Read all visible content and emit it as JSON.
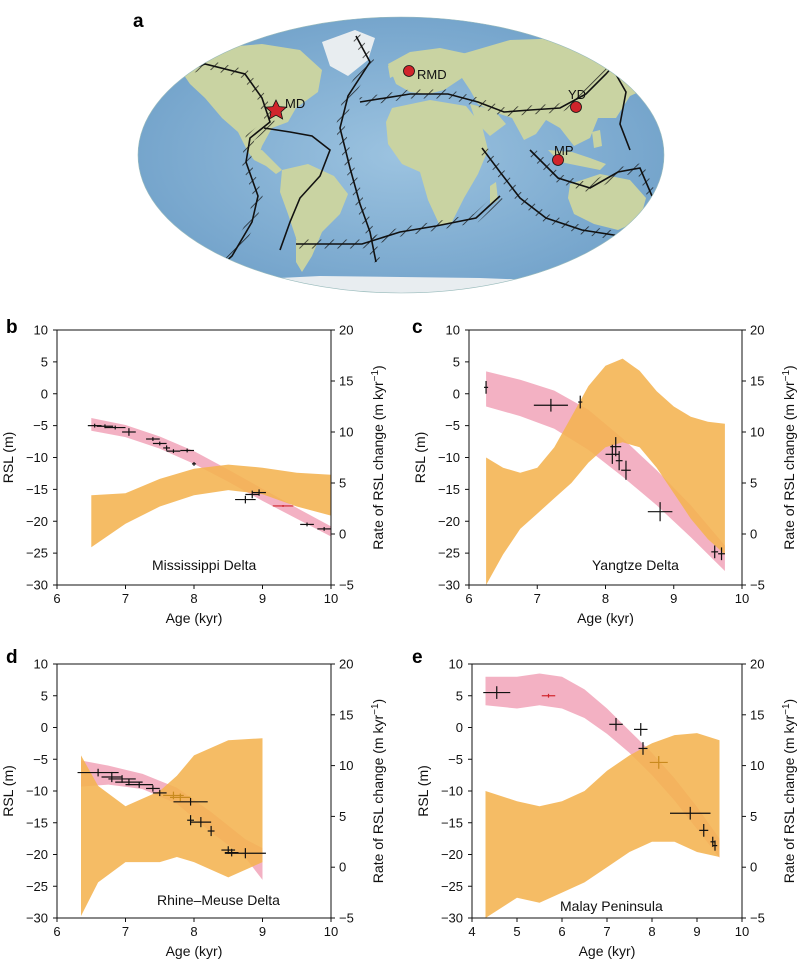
{
  "panel_letters": [
    "a",
    "b",
    "c",
    "d",
    "e"
  ],
  "map": {
    "sites": [
      {
        "label": "MD",
        "marker": "star",
        "name": "Mississippi Delta"
      },
      {
        "label": "RMD",
        "marker": "circle",
        "name": "Rhine-Meuse Delta"
      },
      {
        "label": "YD",
        "marker": "circle",
        "name": "Yangtze Delta"
      },
      {
        "label": "MP",
        "marker": "circle",
        "name": "Malay Peninsula"
      }
    ],
    "colors": {
      "ocean": "#8fb8d9",
      "land": "#c9d3a2",
      "boundary": "#111111",
      "site": "#d0242b"
    }
  },
  "axis_text": {
    "xlabel": "Age (kyr)",
    "ylabel": "RSL (m)",
    "y2label": "Rate of RSL change (m kyr",
    "y2label_sup": "−1",
    "y2label_end": ")"
  },
  "colors": {
    "rsl_band": "#f2a9bd",
    "rate_band": "#f4b350",
    "points": "#111111",
    "highlight": "#d0242b",
    "highlight_orange": "#c98a1e"
  },
  "chart_data": [
    {
      "panel": "b",
      "type": "area",
      "title": "Mississippi Delta",
      "xlabel": "Age (kyr)",
      "ylabel": "RSL (m)",
      "y2label": "Rate of RSL change (m kyr−1)",
      "xlim": [
        6,
        10
      ],
      "ylim": [
        -30,
        10
      ],
      "y2lim": [
        -5,
        20
      ],
      "xticks": [
        6,
        7,
        8,
        9,
        10
      ],
      "yticks": [
        10,
        5,
        0,
        -5,
        -10,
        -15,
        -20,
        -25,
        -30
      ],
      "y2ticks": [
        20,
        15,
        10,
        5,
        0,
        -5
      ],
      "rsl_band": {
        "x": [
          6.5,
          7.0,
          7.5,
          8.0,
          8.5,
          9.0,
          9.5,
          10.0
        ],
        "lower": [
          -5.8,
          -6.8,
          -8.6,
          -11.0,
          -13.8,
          -16.8,
          -19.6,
          -22.4
        ],
        "upper": [
          -3.8,
          -4.9,
          -6.7,
          -9.0,
          -11.9,
          -14.9,
          -17.9,
          -20.8
        ]
      },
      "rate_band": {
        "x": [
          6.5,
          7.0,
          7.5,
          8.0,
          8.5,
          9.0,
          9.5,
          10.0
        ],
        "lower": [
          -1.3,
          1.0,
          2.7,
          3.8,
          4.3,
          3.9,
          2.7,
          1.8
        ],
        "upper": [
          3.8,
          4.0,
          5.4,
          6.4,
          6.8,
          6.5,
          6.0,
          5.8
        ]
      },
      "points": [
        {
          "x": 6.55,
          "y": -5.0,
          "xerr": 0.1,
          "yerr": 0.3
        },
        {
          "x": 6.7,
          "y": -5.1,
          "xerr": 0.12,
          "yerr": 0.3
        },
        {
          "x": 6.85,
          "y": -5.3,
          "xerr": 0.15,
          "yerr": 0.3
        },
        {
          "x": 7.05,
          "y": -6.0,
          "xerr": 0.1,
          "yerr": 0.6
        },
        {
          "x": 7.4,
          "y": -7.1,
          "xerr": 0.1,
          "yerr": 0.3
        },
        {
          "x": 7.5,
          "y": -7.8,
          "xerr": 0.1,
          "yerr": 0.3
        },
        {
          "x": 7.6,
          "y": -8.5,
          "xerr": 0.05,
          "yerr": 0.4
        },
        {
          "x": 7.7,
          "y": -9.0,
          "xerr": 0.1,
          "yerr": 0.3
        },
        {
          "x": 7.9,
          "y": -8.9,
          "xerr": 0.1,
          "yerr": 0.3
        },
        {
          "x": 8.0,
          "y": -11.0,
          "xerr": 0.03,
          "yerr": 0.3
        },
        {
          "x": 8.75,
          "y": -16.6,
          "xerr": 0.15,
          "yerr": 0.6
        },
        {
          "x": 8.85,
          "y": -15.8,
          "xerr": 0.1,
          "yerr": 0.6
        },
        {
          "x": 8.95,
          "y": -15.5,
          "xerr": 0.1,
          "yerr": 0.5
        },
        {
          "x": 9.65,
          "y": -20.5,
          "xerr": 0.1,
          "yerr": 0.3
        },
        {
          "x": 9.9,
          "y": -21.2,
          "xerr": 0.1,
          "yerr": 0.3
        },
        {
          "x": 9.3,
          "y": -17.6,
          "xerr": 0.15,
          "yerr": 0.15,
          "highlight": "red"
        }
      ]
    },
    {
      "panel": "c",
      "type": "area",
      "title": "Yangtze Delta",
      "xlabel": "Age (kyr)",
      "ylabel": "RSL (m)",
      "y2label": "Rate of RSL change (m kyr−1)",
      "xlim": [
        6,
        10
      ],
      "ylim": [
        -30,
        10
      ],
      "y2lim": [
        -5,
        20
      ],
      "xticks": [
        6,
        7,
        8,
        9,
        10
      ],
      "yticks": [
        10,
        5,
        0,
        -5,
        -10,
        -15,
        -20,
        -25,
        -30
      ],
      "y2ticks": [
        20,
        15,
        10,
        5,
        0,
        -5
      ],
      "rsl_band": {
        "x": [
          6.25,
          6.75,
          7.25,
          7.75,
          8.25,
          8.75,
          9.25,
          9.75
        ],
        "lower": [
          -2.0,
          -3.5,
          -5.5,
          -8.8,
          -13.0,
          -17.5,
          -22.5,
          -27.8
        ],
        "upper": [
          3.5,
          2.2,
          0.5,
          -2.5,
          -7.0,
          -12.0,
          -17.5,
          -23.8
        ]
      },
      "rate_band": {
        "x": [
          6.25,
          6.5,
          6.75,
          7.0,
          7.25,
          7.5,
          7.75,
          8.0,
          8.25,
          8.5,
          8.75,
          9.0,
          9.25,
          9.5,
          9.75
        ],
        "lower": [
          -5.0,
          -2.0,
          0.5,
          2.0,
          3.5,
          5.0,
          7.0,
          8.5,
          9.0,
          8.5,
          6.5,
          4.0,
          1.5,
          -0.5,
          -2.0
        ],
        "upper": [
          7.5,
          6.5,
          6.0,
          6.5,
          8.5,
          11.5,
          14.5,
          16.5,
          17.2,
          16.0,
          14.0,
          12.5,
          11.5,
          11.0,
          10.8
        ]
      },
      "points": [
        {
          "x": 6.25,
          "y": 1.0,
          "xerr": 0.03,
          "yerr": 1.0
        },
        {
          "x": 7.2,
          "y": -1.8,
          "xerr": 0.25,
          "yerr": 1.0
        },
        {
          "x": 7.63,
          "y": -1.3,
          "xerr": 0.03,
          "yerr": 1.0
        },
        {
          "x": 8.1,
          "y": -9.5,
          "xerr": 0.1,
          "yerr": 1.5
        },
        {
          "x": 8.15,
          "y": -8.3,
          "xerr": 0.08,
          "yerr": 1.5
        },
        {
          "x": 8.2,
          "y": -10.5,
          "xerr": 0.05,
          "yerr": 1.5
        },
        {
          "x": 8.3,
          "y": -12.0,
          "xerr": 0.07,
          "yerr": 1.5
        },
        {
          "x": 8.8,
          "y": -18.5,
          "xerr": 0.18,
          "yerr": 1.5
        },
        {
          "x": 9.6,
          "y": -24.8,
          "xerr": 0.05,
          "yerr": 1.0
        },
        {
          "x": 9.7,
          "y": -25.1,
          "xerr": 0.05,
          "yerr": 1.0
        }
      ]
    },
    {
      "panel": "d",
      "type": "area",
      "title": "Rhine–Meuse Delta",
      "xlabel": "Age (kyr)",
      "ylabel": "RSL (m)",
      "y2label": "Rate of RSL change (m kyr−1)",
      "xlim": [
        6,
        10
      ],
      "ylim": [
        -30,
        10
      ],
      "y2lim": [
        -5,
        20
      ],
      "xticks": [
        6,
        7,
        8,
        9,
        10
      ],
      "yticks": [
        10,
        5,
        0,
        -5,
        -10,
        -15,
        -20,
        -25,
        -30
      ],
      "y2ticks": [
        20,
        15,
        10,
        5,
        0,
        -5
      ],
      "rsl_band": {
        "x": [
          6.35,
          6.75,
          7.25,
          7.75,
          8.25,
          8.75,
          9.0
        ],
        "lower": [
          -9.3,
          -9.0,
          -9.7,
          -12.0,
          -16.5,
          -20.5,
          -24.0
        ],
        "upper": [
          -5.2,
          -6.0,
          -7.3,
          -9.5,
          -13.3,
          -17.6,
          -19.0
        ]
      },
      "rate_band": {
        "x": [
          6.35,
          6.6,
          7.0,
          7.5,
          7.75,
          8.0,
          8.5,
          9.0
        ],
        "lower": [
          -4.8,
          -1.5,
          0.5,
          0.5,
          1.0,
          0.5,
          -1.0,
          0.5
        ],
        "upper": [
          11.0,
          8.0,
          6.0,
          7.5,
          9.0,
          11.0,
          12.5,
          12.7
        ]
      },
      "points": [
        {
          "x": 6.6,
          "y": -7.1,
          "xerr": 0.3,
          "yerr": 0.6
        },
        {
          "x": 6.8,
          "y": -7.8,
          "xerr": 0.15,
          "yerr": 0.8
        },
        {
          "x": 6.95,
          "y": -8.1,
          "xerr": 0.2,
          "yerr": 0.6
        },
        {
          "x": 7.05,
          "y": -8.6,
          "xerr": 0.2,
          "yerr": 0.5
        },
        {
          "x": 7.2,
          "y": -9.0,
          "xerr": 0.2,
          "yerr": 0.5
        },
        {
          "x": 7.4,
          "y": -9.6,
          "xerr": 0.1,
          "yerr": 0.5
        },
        {
          "x": 7.5,
          "y": -10.3,
          "xerr": 0.1,
          "yerr": 0.5
        },
        {
          "x": 7.7,
          "y": -10.7,
          "xerr": 0.15,
          "yerr": 0.6,
          "highlight": "orange"
        },
        {
          "x": 7.8,
          "y": -11.0,
          "xerr": 0.15,
          "yerr": 0.6,
          "highlight": "orange"
        },
        {
          "x": 7.95,
          "y": -11.7,
          "xerr": 0.25,
          "yerr": 0.6
        },
        {
          "x": 7.95,
          "y": -14.6,
          "xerr": 0.05,
          "yerr": 0.8
        },
        {
          "x": 8.1,
          "y": -14.9,
          "xerr": 0.15,
          "yerr": 0.8
        },
        {
          "x": 8.25,
          "y": -16.3,
          "xerr": 0.05,
          "yerr": 0.8
        },
        {
          "x": 8.5,
          "y": -19.3,
          "xerr": 0.1,
          "yerr": 0.6
        },
        {
          "x": 8.55,
          "y": -19.7,
          "xerr": 0.1,
          "yerr": 0.6
        },
        {
          "x": 8.75,
          "y": -19.8,
          "xerr": 0.3,
          "yerr": 0.8
        }
      ]
    },
    {
      "panel": "e",
      "type": "area",
      "title": "Malay Peninsula",
      "xlabel": "Age (kyr)",
      "ylabel": "RSL (m)",
      "y2label": "Rate of RSL change (m kyr−1)",
      "xlim": [
        4,
        10
      ],
      "ylim": [
        -30,
        10
      ],
      "y2lim": [
        -5,
        20
      ],
      "xticks": [
        4,
        5,
        6,
        7,
        8,
        9,
        10
      ],
      "yticks": [
        10,
        5,
        0,
        -5,
        -10,
        -15,
        -20,
        -25,
        -30
      ],
      "y2ticks": [
        20,
        15,
        10,
        5,
        0,
        -5
      ],
      "rsl_band": {
        "x": [
          4.3,
          5.0,
          5.5,
          6.0,
          6.5,
          7.0,
          7.5,
          8.0,
          8.5,
          9.0,
          9.5
        ],
        "lower": [
          3.5,
          3.0,
          3.5,
          3.0,
          1.5,
          -1.0,
          -4.0,
          -7.5,
          -11.5,
          -16.0,
          -20.5
        ],
        "upper": [
          8.0,
          8.0,
          8.5,
          8.0,
          6.0,
          3.0,
          -0.5,
          -4.0,
          -8.0,
          -12.5,
          -17.5
        ]
      },
      "rate_band": {
        "x": [
          4.3,
          5.0,
          5.5,
          6.0,
          6.5,
          7.0,
          7.5,
          8.0,
          8.5,
          9.0,
          9.5
        ],
        "lower": [
          -5.0,
          -3.0,
          -3.5,
          -2.5,
          -1.5,
          0.0,
          1.5,
          2.5,
          2.5,
          1.5,
          1.0
        ],
        "upper": [
          7.5,
          6.5,
          6.0,
          6.5,
          7.5,
          9.5,
          11.0,
          12.2,
          13.0,
          13.2,
          12.5
        ]
      },
      "points": [
        {
          "x": 4.55,
          "y": 5.5,
          "xerr": 0.3,
          "yerr": 1.0
        },
        {
          "x": 7.2,
          "y": 0.5,
          "xerr": 0.15,
          "yerr": 1.0
        },
        {
          "x": 7.75,
          "y": -0.3,
          "xerr": 0.15,
          "yerr": 1.0
        },
        {
          "x": 7.8,
          "y": -3.3,
          "xerr": 0.1,
          "yerr": 1.0
        },
        {
          "x": 8.85,
          "y": -13.5,
          "xerr": 0.45,
          "yerr": 1.0
        },
        {
          "x": 9.15,
          "y": -16.2,
          "xerr": 0.1,
          "yerr": 1.0
        },
        {
          "x": 9.35,
          "y": -18.0,
          "xerr": 0.05,
          "yerr": 0.8
        },
        {
          "x": 9.4,
          "y": -18.6,
          "xerr": 0.05,
          "yerr": 0.8
        },
        {
          "x": 5.7,
          "y": 5.0,
          "xerr": 0.15,
          "yerr": 0.3,
          "highlight": "red"
        },
        {
          "x": 8.15,
          "y": -5.5,
          "xerr": 0.2,
          "yerr": 1.0,
          "highlight": "orange"
        }
      ]
    }
  ]
}
